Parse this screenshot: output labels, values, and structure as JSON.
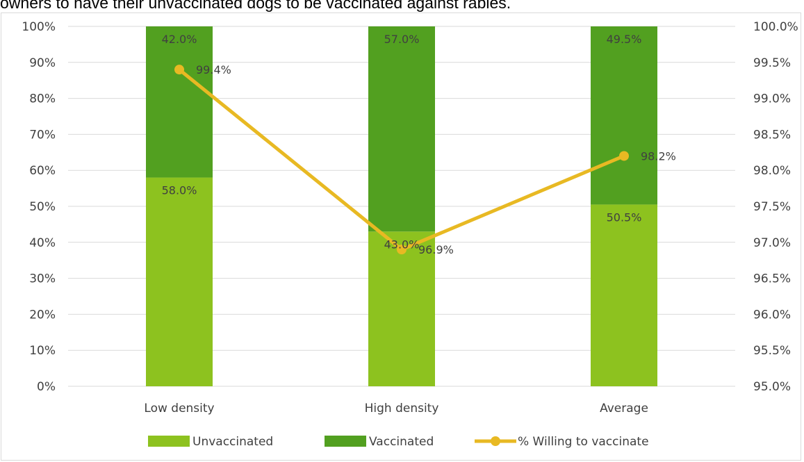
{
  "title": "owners to have their unvaccinated dogs to be vaccinated against rabies.",
  "chart_data": {
    "type": "bar",
    "stacked": true,
    "categories": [
      "Low density",
      "High density",
      "Average"
    ],
    "series": [
      {
        "name": "Unvaccinated",
        "values": [
          58.0,
          43.0,
          50.5
        ],
        "labels": [
          "58.0%",
          "43.0%",
          "50.5%"
        ],
        "color": "#8dc21f",
        "axis": "left"
      },
      {
        "name": "Vaccinated",
        "values": [
          42.0,
          57.0,
          49.5
        ],
        "labels": [
          "42.0%",
          "57.0%",
          "49.5%"
        ],
        "color": "#52a020",
        "axis": "left"
      },
      {
        "name": "% Willing to vaccinate",
        "type": "line",
        "values": [
          99.4,
          96.9,
          98.2
        ],
        "labels": [
          "99.4%",
          "96.9%",
          "98.2%"
        ],
        "color": "#e8b923",
        "axis": "right"
      }
    ],
    "y_left": {
      "range": [
        0,
        100
      ],
      "ticks": [
        "0%",
        "10%",
        "20%",
        "30%",
        "40%",
        "50%",
        "60%",
        "70%",
        "80%",
        "90%",
        "100%"
      ]
    },
    "y_right": {
      "range": [
        95.0,
        100.0
      ],
      "ticks": [
        "95.0%",
        "95.5%",
        "96.0%",
        "96.5%",
        "97.0%",
        "97.5%",
        "98.0%",
        "98.5%",
        "99.0%",
        "99.5%",
        "100.0%"
      ]
    },
    "grid": true,
    "legend": "bottom"
  }
}
